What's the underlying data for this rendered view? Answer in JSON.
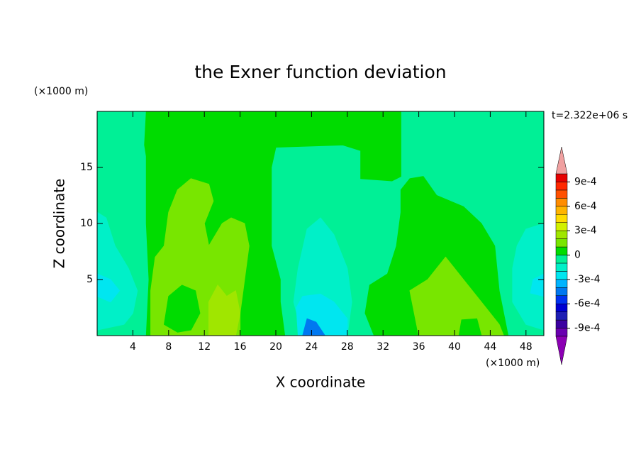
{
  "chart_data": {
    "type": "contour",
    "title": "the Exner function deviation",
    "xlabel": "X coordinate",
    "ylabel": "Z coordinate",
    "x_unit": "(×1000 m)",
    "y_unit": "(×1000 m)",
    "annotation": "t=2.322e+06 s",
    "xlim": [
      0,
      50
    ],
    "ylim": [
      0,
      20
    ],
    "xticks": [
      4,
      8,
      12,
      16,
      20,
      24,
      28,
      32,
      36,
      40,
      44,
      48
    ],
    "yticks": [
      5,
      10,
      15
    ],
    "colorbar": {
      "levels": [
        -0.001,
        -0.0009,
        -0.0008,
        -0.0007,
        -0.0006,
        -0.0005,
        -0.0004,
        -0.0003,
        -0.0002,
        -0.0001,
        0,
        0.0001,
        0.0002,
        0.0003,
        0.0004,
        0.0005,
        0.0006,
        0.0007,
        0.0008,
        0.0009,
        0.001
      ],
      "colors": [
        "#6a00b0",
        "#3c00a0",
        "#1e1eb4",
        "#0000d2",
        "#0032f0",
        "#0078f0",
        "#00b4ff",
        "#00e6f0",
        "#00f0c8",
        "#00f096",
        "#00dc00",
        "#78e600",
        "#a0e600",
        "#d2f000",
        "#ffdc00",
        "#ffb400",
        "#ff8c00",
        "#ff5000",
        "#ff2800",
        "#e60000"
      ],
      "extend_colors": [
        "#8c00b4",
        "#f0a0a0"
      ],
      "ticks": [
        {
          "value": 0.0009,
          "label": "9e-4"
        },
        {
          "value": 0.0006,
          "label": "6e-4"
        },
        {
          "value": 0.0003,
          "label": "3e-4"
        },
        0,
        {
          "value": -0.0003,
          "label": "-3e-4"
        },
        {
          "value": -0.0006,
          "label": "-6e-4"
        },
        {
          "value": -0.0009,
          "label": "-9e-4"
        }
      ]
    }
  }
}
